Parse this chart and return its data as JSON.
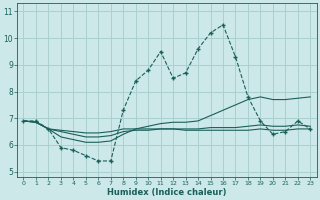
{
  "xlabel": "Humidex (Indice chaleur)",
  "xlim": [
    -0.5,
    23.5
  ],
  "ylim": [
    4.8,
    11.3
  ],
  "yticks": [
    5,
    6,
    7,
    8,
    9,
    10,
    11
  ],
  "xticks": [
    0,
    1,
    2,
    3,
    4,
    5,
    6,
    7,
    8,
    9,
    10,
    11,
    12,
    13,
    14,
    15,
    16,
    17,
    18,
    19,
    20,
    21,
    22,
    23
  ],
  "background_color": "#cce8e8",
  "grid_color": "#aad0d0",
  "line_color": "#1a5f5a",
  "series1_x": [
    0,
    1,
    2,
    3,
    4,
    5,
    6,
    7,
    8,
    9,
    10,
    11,
    12,
    13,
    14,
    15,
    16,
    17,
    18,
    19,
    20,
    21,
    22,
    23
  ],
  "series1_y": [
    6.9,
    6.9,
    6.6,
    5.9,
    5.8,
    5.6,
    5.4,
    5.4,
    7.3,
    8.4,
    8.8,
    9.5,
    8.5,
    8.7,
    9.6,
    10.2,
    10.5,
    9.3,
    7.8,
    6.9,
    6.4,
    6.5,
    6.9,
    6.6
  ],
  "series2_x": [
    0,
    1,
    2,
    3,
    4,
    5,
    6,
    7,
    8,
    9,
    10,
    11,
    12,
    13,
    14,
    15,
    16,
    17,
    18,
    19,
    20,
    21,
    22,
    23
  ],
  "series2_y": [
    6.9,
    6.85,
    6.6,
    6.3,
    6.2,
    6.1,
    6.1,
    6.15,
    6.4,
    6.6,
    6.7,
    6.8,
    6.85,
    6.85,
    6.9,
    7.1,
    7.3,
    7.5,
    7.7,
    7.8,
    7.7,
    7.7,
    7.75,
    7.8
  ],
  "series3_x": [
    0,
    1,
    2,
    3,
    4,
    5,
    6,
    7,
    8,
    9,
    10,
    11,
    12,
    13,
    14,
    15,
    16,
    17,
    18,
    19,
    20,
    21,
    22,
    23
  ],
  "series3_y": [
    6.9,
    6.85,
    6.6,
    6.5,
    6.4,
    6.3,
    6.3,
    6.35,
    6.5,
    6.55,
    6.55,
    6.6,
    6.6,
    6.6,
    6.6,
    6.65,
    6.65,
    6.65,
    6.7,
    6.75,
    6.7,
    6.7,
    6.75,
    6.7
  ],
  "series4_x": [
    0,
    1,
    2,
    3,
    4,
    5,
    6,
    7,
    8,
    9,
    10,
    11,
    12,
    13,
    14,
    15,
    16,
    17,
    18,
    19,
    20,
    21,
    22,
    23
  ],
  "series4_y": [
    6.9,
    6.85,
    6.6,
    6.55,
    6.5,
    6.45,
    6.45,
    6.5,
    6.6,
    6.6,
    6.6,
    6.6,
    6.6,
    6.55,
    6.55,
    6.55,
    6.55,
    6.55,
    6.55,
    6.6,
    6.55,
    6.55,
    6.6,
    6.6
  ]
}
